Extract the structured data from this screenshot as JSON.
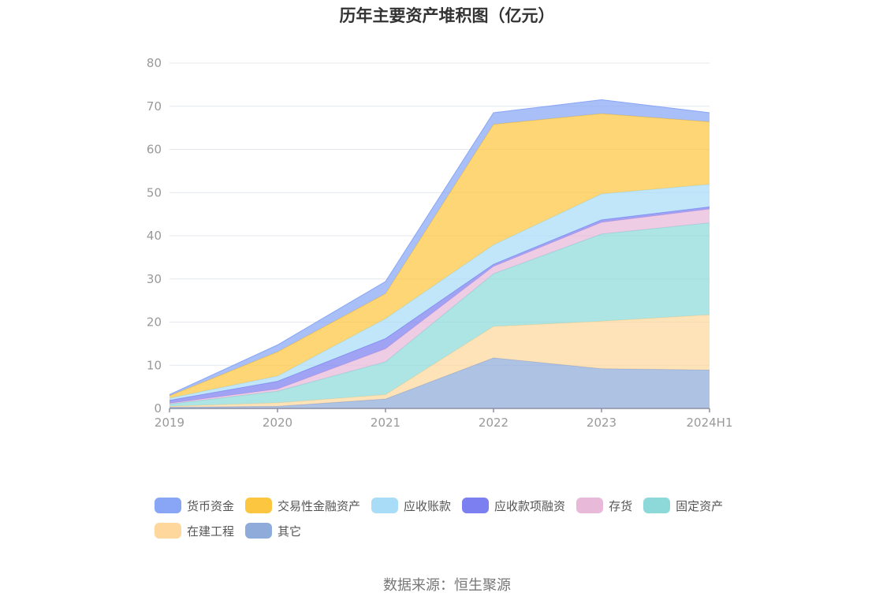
{
  "chart_data": {
    "type": "area",
    "stacked": true,
    "title": "历年主要资产堆积图（亿元）",
    "x": [
      "2019",
      "2020",
      "2021",
      "2022",
      "2023",
      "2024H1"
    ],
    "ylim": [
      0,
      80
    ],
    "yticks": [
      0,
      10,
      20,
      30,
      40,
      50,
      60,
      70,
      80
    ],
    "grid": true,
    "legend_position": "bottom",
    "series": [
      {
        "name": "其它",
        "color": "#8fabda",
        "values": [
          0.3,
          0.5,
          2.2,
          11.7,
          9.2,
          8.9
        ]
      },
      {
        "name": "在建工程",
        "color": "#fdd79c",
        "values": [
          0.2,
          0.8,
          1.0,
          7.3,
          11.0,
          12.8
        ]
      },
      {
        "name": "固定资产",
        "color": "#8dd9d9",
        "values": [
          0.5,
          2.7,
          7.6,
          12.2,
          20.2,
          21.3
        ]
      },
      {
        "name": "存货",
        "color": "#e8b9d9",
        "values": [
          0.2,
          0.5,
          3.0,
          1.7,
          2.7,
          3.2
        ]
      },
      {
        "name": "应收款项融资",
        "color": "#7b7ff0",
        "values": [
          0.7,
          1.8,
          2.4,
          0.5,
          0.6,
          0.5
        ]
      },
      {
        "name": "应收账款",
        "color": "#a9dcf6",
        "values": [
          0.5,
          1.2,
          4.6,
          4.5,
          6.0,
          5.2
        ]
      },
      {
        "name": "交易性金融资产",
        "color": "#fdc640",
        "values": [
          0.5,
          5.6,
          5.8,
          27.9,
          18.6,
          14.5
        ]
      },
      {
        "name": "货币资金",
        "color": "#88a6f5",
        "values": [
          0.3,
          1.6,
          2.8,
          2.7,
          3.2,
          2.1
        ]
      }
    ],
    "legend_order": [
      "货币资金",
      "交易性金融资产",
      "应收账款",
      "应收款项融资",
      "存货",
      "固定资产",
      "在建工程",
      "其它"
    ]
  },
  "source": "数据来源：恒生聚源"
}
